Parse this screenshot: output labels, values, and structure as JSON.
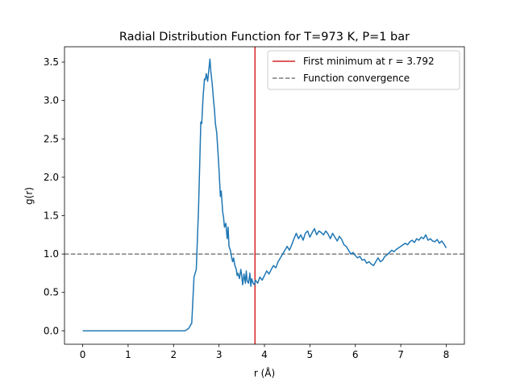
{
  "chart_data": {
    "type": "line",
    "title": "Radial Distribution Function for T=973 K, P=1 bar",
    "xlabel": "r (Å)",
    "ylabel": "g(r)",
    "xlim": [
      -0.4,
      8.4
    ],
    "ylim": [
      -0.175,
      3.7
    ],
    "xticks": [
      0,
      1,
      2,
      3,
      4,
      5,
      6,
      7,
      8
    ],
    "yticks": [
      0.0,
      0.5,
      1.0,
      1.5,
      2.0,
      2.5,
      3.0,
      3.5
    ],
    "xtick_labels": [
      "0",
      "1",
      "2",
      "3",
      "4",
      "5",
      "6",
      "7",
      "8"
    ],
    "ytick_labels": [
      "0.0",
      "0.5",
      "1.0",
      "1.5",
      "2.0",
      "2.5",
      "3.0",
      "3.5"
    ],
    "grid": false,
    "legend_position": "top-right",
    "series": [
      {
        "color": "#1f77b4",
        "x": [
          0.0,
          0.5,
          1.0,
          1.5,
          2.0,
          2.25,
          2.33,
          2.4,
          2.45,
          2.5,
          2.55,
          2.6,
          2.62,
          2.65,
          2.68,
          2.7,
          2.72,
          2.75,
          2.78,
          2.8,
          2.82,
          2.85,
          2.88,
          2.9,
          2.92,
          2.95,
          2.98,
          3.0,
          3.03,
          3.05,
          3.08,
          3.1,
          3.12,
          3.15,
          3.18,
          3.2,
          3.22,
          3.25,
          3.28,
          3.3,
          3.32,
          3.35,
          3.38,
          3.4,
          3.42,
          3.45,
          3.48,
          3.5,
          3.52,
          3.55,
          3.58,
          3.6,
          3.62,
          3.65,
          3.68,
          3.7,
          3.72,
          3.75,
          3.78,
          3.8,
          3.85,
          3.9,
          3.95,
          4.0,
          4.05,
          4.1,
          4.15,
          4.2,
          4.25,
          4.3,
          4.35,
          4.4,
          4.45,
          4.5,
          4.55,
          4.6,
          4.65,
          4.7,
          4.75,
          4.8,
          4.85,
          4.9,
          4.95,
          5.0,
          5.05,
          5.1,
          5.15,
          5.2,
          5.25,
          5.3,
          5.35,
          5.4,
          5.45,
          5.5,
          5.55,
          5.6,
          5.65,
          5.7,
          5.75,
          5.8,
          5.85,
          5.9,
          5.95,
          6.0,
          6.05,
          6.1,
          6.15,
          6.2,
          6.25,
          6.3,
          6.35,
          6.4,
          6.45,
          6.5,
          6.55,
          6.6,
          6.65,
          6.7,
          6.75,
          6.8,
          6.85,
          6.9,
          6.95,
          7.0,
          7.05,
          7.1,
          7.15,
          7.2,
          7.25,
          7.3,
          7.35,
          7.4,
          7.45,
          7.5,
          7.55,
          7.6,
          7.65,
          7.7,
          7.75,
          7.8,
          7.85,
          7.9,
          7.95,
          8.0
        ],
        "y": [
          0.0,
          0.0,
          0.0,
          0.0,
          0.0,
          0.0,
          0.03,
          0.1,
          0.7,
          0.8,
          1.6,
          2.72,
          2.7,
          3.05,
          3.28,
          3.27,
          3.35,
          3.25,
          3.42,
          3.54,
          3.38,
          3.22,
          3.0,
          2.88,
          2.7,
          2.58,
          2.3,
          2.1,
          1.75,
          1.82,
          1.55,
          1.48,
          1.35,
          1.4,
          1.2,
          1.35,
          1.1,
          1.05,
          0.95,
          0.9,
          0.95,
          0.85,
          0.8,
          0.72,
          0.75,
          0.68,
          0.8,
          0.72,
          0.6,
          0.74,
          0.62,
          0.78,
          0.65,
          0.62,
          0.75,
          0.58,
          0.68,
          0.62,
          0.6,
          0.66,
          0.62,
          0.7,
          0.66,
          0.72,
          0.78,
          0.74,
          0.8,
          0.85,
          0.82,
          0.9,
          0.95,
          1.0,
          1.05,
          1.1,
          1.05,
          1.12,
          1.2,
          1.27,
          1.2,
          1.25,
          1.18,
          1.27,
          1.3,
          1.22,
          1.28,
          1.33,
          1.25,
          1.3,
          1.28,
          1.25,
          1.3,
          1.26,
          1.2,
          1.27,
          1.22,
          1.17,
          1.23,
          1.19,
          1.12,
          1.1,
          1.05,
          1.0,
          1.02,
          0.98,
          0.95,
          0.97,
          0.92,
          0.93,
          0.88,
          0.9,
          0.87,
          0.85,
          0.9,
          0.95,
          0.9,
          0.92,
          0.97,
          0.99,
          1.02,
          1.05,
          1.03,
          1.06,
          1.08,
          1.1,
          1.12,
          1.14,
          1.12,
          1.16,
          1.18,
          1.15,
          1.2,
          1.18,
          1.22,
          1.2,
          1.25,
          1.18,
          1.2,
          1.17,
          1.16,
          1.19,
          1.14,
          1.17,
          1.13,
          1.08
        ]
      }
    ],
    "reference_lines": [
      {
        "orientation": "vertical",
        "value": 3.792,
        "color": "#d62728",
        "style": "solid",
        "label": "First minimum at r = 3.792"
      },
      {
        "orientation": "horizontal",
        "value": 1.0,
        "color": "#7f7f7f",
        "style": "dashed",
        "label": "Function convergence"
      }
    ],
    "legend": [
      {
        "label": "First minimum at r = 3.792",
        "color": "#d62728",
        "style": "solid"
      },
      {
        "label": "Function convergence",
        "color": "#7f7f7f",
        "style": "dashed"
      }
    ]
  }
}
